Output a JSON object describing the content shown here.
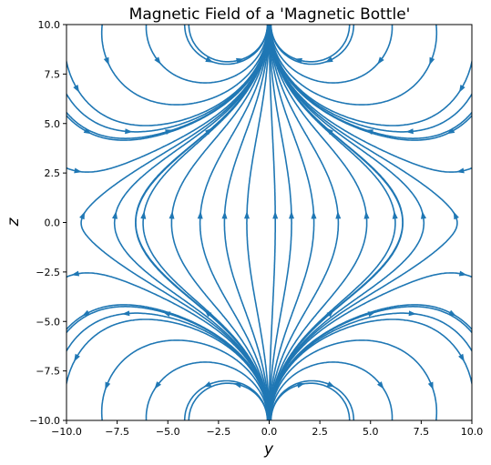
{
  "chart_data": {
    "type": "streamplot",
    "title": "Magnetic Field of a 'Magnetic Bottle'",
    "xlabel": "y",
    "ylabel": "z",
    "xlim": [
      -10,
      10
    ],
    "ylim": [
      -10,
      10
    ],
    "x_ticks": [
      "−10.0",
      "−7.5",
      "−5.0",
      "−2.5",
      "0.0",
      "2.5",
      "5.0",
      "7.5",
      "10.0"
    ],
    "y_ticks": [
      "−10.0",
      "−7.5",
      "−5.0",
      "−2.5",
      "0.0",
      "2.5",
      "5.0",
      "7.5",
      "10.0"
    ],
    "x_tick_values": [
      -10,
      -7.5,
      -5,
      -2.5,
      0,
      2.5,
      5,
      7.5,
      10
    ],
    "y_tick_values": [
      -10,
      -7.5,
      -5,
      -2.5,
      0,
      2.5,
      5,
      7.5,
      10
    ],
    "coil_positions_z": [
      10,
      -10
    ],
    "grid": false,
    "legend": "none",
    "colors": {
      "stream": "#1f77b4",
      "axes": "#000000",
      "background": "#ffffff"
    }
  }
}
